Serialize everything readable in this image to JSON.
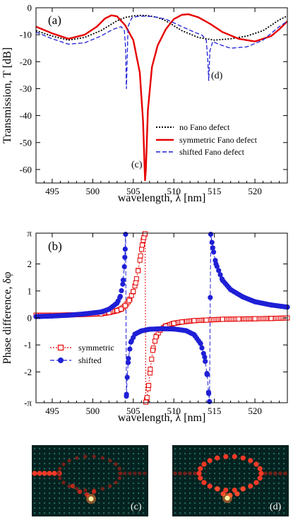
{
  "chart_data": [
    {
      "type": "line",
      "panel_label": "(a)",
      "xlabel": "wavelength, λ [nm]",
      "ylabel": "Transmission, T [dB]",
      "xlim": [
        493,
        524
      ],
      "ylim": [
        -65,
        0
      ],
      "x_ticks": [
        "495",
        "500",
        "505",
        "510",
        "515",
        "520"
      ],
      "y_ticks": [
        "0",
        "-10",
        "-20",
        "-30",
        "-40",
        "-50",
        "-60"
      ],
      "grid": false,
      "legend_position": "lower-right",
      "annotations": [
        {
          "text": "(c)",
          "x": 505.5,
          "y": -61
        },
        {
          "text": "(d)",
          "x": 514.9,
          "y": -28
        }
      ],
      "series": [
        {
          "name": "no Fano defect",
          "color": "#000000",
          "style": "dotted",
          "x": [
            493,
            495,
            497,
            499,
            501,
            503,
            504,
            505,
            506,
            507,
            508,
            509,
            511,
            513,
            515,
            517,
            519,
            521,
            522,
            523,
            524
          ],
          "y": [
            -8.5,
            -10.5,
            -12,
            -11,
            -8.5,
            -4.8,
            -3.6,
            -3,
            -2.8,
            -3,
            -3.6,
            -4.8,
            -8.5,
            -11,
            -12,
            -11.5,
            -10.5,
            -8.5,
            -6.5,
            -4.5,
            -3
          ]
        },
        {
          "name": "symmetric Fano defect",
          "color": "#e60000",
          "style": "solid",
          "x": [
            493,
            495,
            497,
            499,
            500.5,
            501.5,
            502.3,
            503,
            504,
            505,
            505.8,
            506.2,
            506.45,
            506.55,
            506.8,
            507.3,
            508,
            509,
            510,
            511,
            511.8,
            513,
            514.5,
            516,
            518,
            520,
            522,
            523,
            524
          ],
          "y": [
            -7,
            -9.5,
            -11.5,
            -10,
            -7,
            -4,
            -2.8,
            -3.2,
            -6.5,
            -12,
            -24,
            -42,
            -64,
            -60,
            -38,
            -22,
            -14,
            -8,
            -4.2,
            -2.6,
            -2.4,
            -3.5,
            -6,
            -9,
            -11.5,
            -12.5,
            -10.5,
            -8,
            -5
          ]
        },
        {
          "name": "shifted Fano defect",
          "color": "#1f1fd6",
          "style": "dashed",
          "x": [
            493,
            495,
            497,
            499,
            501,
            502.5,
            503.5,
            503.9,
            504.05,
            504.15,
            504.35,
            504.8,
            505.5,
            506.5,
            507.5,
            509,
            511,
            512.5,
            513.5,
            514,
            514.2,
            514.3,
            514.45,
            514.8,
            515.5,
            517,
            519,
            521,
            522,
            523,
            524
          ],
          "y": [
            -9,
            -11.5,
            -13.5,
            -13,
            -10.5,
            -8,
            -7,
            -8.5,
            -15,
            -30,
            -7,
            -3.8,
            -3.2,
            -3.1,
            -3.3,
            -4.2,
            -7,
            -9,
            -10.2,
            -12,
            -20,
            -27,
            -16,
            -12.5,
            -13.5,
            -15,
            -14.5,
            -12,
            -9.5,
            -7,
            -5
          ]
        }
      ]
    },
    {
      "type": "scatter",
      "panel_label": "(b)",
      "xlabel": "wavelength, λ [nm]",
      "ylabel": "Phase difference, δφ",
      "xlim": [
        493,
        524
      ],
      "ylim": [
        -3.1416,
        3.1416
      ],
      "x_ticks": [
        "495",
        "500",
        "505",
        "510",
        "515",
        "520"
      ],
      "y_ticks": [
        "π",
        "2",
        "1",
        "0",
        "-1",
        "-2",
        "-π"
      ],
      "grid": false,
      "legend_position": "lower-left",
      "series": [
        {
          "name": "symmetric",
          "color": "#e60000",
          "marker": "open-square",
          "line": "dotted",
          "x": [
            493,
            495,
            497,
            499,
            501,
            502,
            503,
            503.5,
            504,
            504.5,
            505,
            505.3,
            505.6,
            505.9,
            506.1,
            506.3,
            506.45,
            506.55,
            506.7,
            506.9,
            507.1,
            507.4,
            507.8,
            508.3,
            509,
            510,
            511,
            512.5,
            514,
            516,
            518,
            520,
            522,
            524
          ],
          "y": [
            0.1,
            0.1,
            0.11,
            0.13,
            0.15,
            0.2,
            0.27,
            0.33,
            0.45,
            0.65,
            0.98,
            1.3,
            1.75,
            2.3,
            2.7,
            2.98,
            3.12,
            -3.12,
            -2.95,
            -2.5,
            -1.9,
            -1.2,
            -0.7,
            -0.45,
            -0.3,
            -0.2,
            -0.15,
            -0.1,
            -0.08,
            -0.05,
            -0.04,
            -0.03,
            -0.02,
            0
          ]
        },
        {
          "name": "shifted",
          "color": "#1f1fd6",
          "marker": "filled-circle",
          "line": "dashed",
          "x": [
            493,
            495,
            497,
            499,
            501,
            502,
            503,
            503.4,
            503.7,
            503.9,
            504.0,
            504.05,
            504.15,
            504.25,
            504.4,
            504.7,
            505.2,
            506,
            507,
            508.5,
            510,
            511.5,
            512.5,
            513.3,
            513.8,
            514.1,
            514.3,
            514.4,
            514.55,
            514.8,
            515.2,
            516,
            517,
            518.5,
            520,
            522,
            524
          ],
          "y": [
            0.05,
            0.07,
            0.1,
            0.15,
            0.22,
            0.32,
            0.55,
            0.8,
            1.25,
            1.9,
            2.55,
            3.1,
            -2.9,
            -2.2,
            -1.5,
            -0.9,
            -0.6,
            -0.48,
            -0.42,
            -0.4,
            -0.41,
            -0.47,
            -0.62,
            -0.95,
            -1.45,
            -2.1,
            -2.8,
            -3.1,
            3.1,
            2.6,
            2.0,
            1.4,
            1.05,
            0.78,
            0.6,
            0.48,
            0.4
          ]
        }
      ]
    }
  ],
  "insets": [
    {
      "label": "(c)"
    },
    {
      "label": "(d)"
    }
  ]
}
